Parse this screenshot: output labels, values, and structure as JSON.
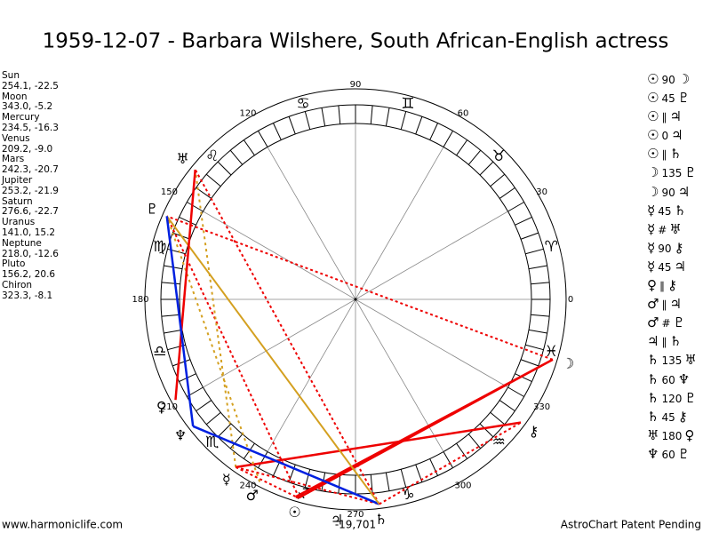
{
  "header": {
    "title": "1959-12-07 - Barbara Wilshere, South African-English actress"
  },
  "planets": [
    {
      "name": "Sun",
      "coords": "254.1, -22.5",
      "glyph": "☉"
    },
    {
      "name": "Moon",
      "coords": "343.0, -5.2",
      "glyph": "☽"
    },
    {
      "name": "Mercury",
      "coords": "234.5, -16.3",
      "glyph": "☿"
    },
    {
      "name": "Venus",
      "coords": "209.2, -9.0",
      "glyph": "♀"
    },
    {
      "name": "Mars",
      "coords": "242.3, -20.7",
      "glyph": "♂"
    },
    {
      "name": "Jupiter",
      "coords": "253.2, -21.9",
      "glyph": "♃"
    },
    {
      "name": "Saturn",
      "coords": "276.6, -22.7",
      "glyph": "♄"
    },
    {
      "name": "Uranus",
      "coords": "141.0, 15.2",
      "glyph": "♅"
    },
    {
      "name": "Neptune",
      "coords": "218.0, -12.6",
      "glyph": "♆"
    },
    {
      "name": "Pluto",
      "coords": "156.2, 20.6",
      "glyph": "♇"
    },
    {
      "name": "Chiron",
      "coords": "323.3, -8.1",
      "glyph": "⚷"
    }
  ],
  "aspects": [
    {
      "p1": "☉",
      "aspect": "90",
      "p2": "☽"
    },
    {
      "p1": "☉",
      "aspect": "45",
      "p2": "♇"
    },
    {
      "p1": "☉",
      "aspect": "∥",
      "p2": "♃"
    },
    {
      "p1": "☉",
      "aspect": "0",
      "p2": "♃"
    },
    {
      "p1": "☉",
      "aspect": "∥",
      "p2": "♄"
    },
    {
      "p1": "☽",
      "aspect": "135",
      "p2": "♇"
    },
    {
      "p1": "☽",
      "aspect": "90",
      "p2": "♃"
    },
    {
      "p1": "☿",
      "aspect": "45",
      "p2": "♄"
    },
    {
      "p1": "☿",
      "aspect": "#",
      "p2": "♅"
    },
    {
      "p1": "☿",
      "aspect": "90",
      "p2": "⚷"
    },
    {
      "p1": "☿",
      "aspect": "45",
      "p2": "♃"
    },
    {
      "p1": "♀",
      "aspect": "∥",
      "p2": "⚷"
    },
    {
      "p1": "♂",
      "aspect": "∥",
      "p2": "♃"
    },
    {
      "p1": "♂",
      "aspect": "#",
      "p2": "♇"
    },
    {
      "p1": "♃",
      "aspect": "∥",
      "p2": "♄"
    },
    {
      "p1": "♄",
      "aspect": "135",
      "p2": "♅"
    },
    {
      "p1": "♄",
      "aspect": "60",
      "p2": "♆"
    },
    {
      "p1": "♄",
      "aspect": "120",
      "p2": "♇"
    },
    {
      "p1": "♄",
      "aspect": "45",
      "p2": "⚷"
    },
    {
      "p1": "♅",
      "aspect": "180",
      "p2": "♀"
    },
    {
      "p1": "♆",
      "aspect": "60",
      "p2": "♇"
    }
  ],
  "wheel": {
    "degree_labels": [
      0,
      30,
      60,
      90,
      120,
      150,
      180,
      210,
      240,
      270,
      300,
      330
    ],
    "signs": [
      "♈",
      "♉",
      "♊",
      "♋",
      "♌",
      "♍",
      "♎",
      "♏",
      "♐",
      "♑",
      "♒",
      "♓"
    ]
  },
  "footer": {
    "left": "www.harmoniclife.com",
    "center": "-19,701",
    "right": "AstroChart Patent Pending"
  }
}
